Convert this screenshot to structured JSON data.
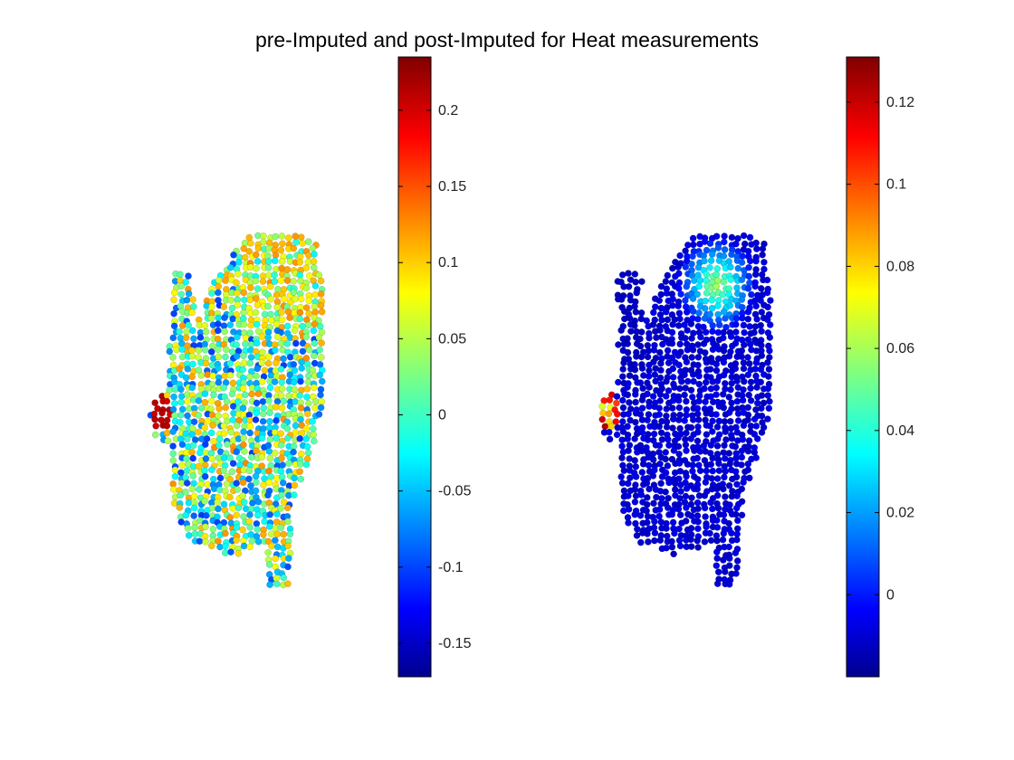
{
  "figure": {
    "title": "pre-Imputed and post-Imputed for Heat measurements"
  },
  "chart_data": [
    {
      "type": "scatter",
      "name_shown": "",
      "panel": "left",
      "colormap": "jet",
      "colorbar": {
        "range": [
          -0.172,
          0.235
        ],
        "ticks": [
          -0.15,
          -0.1,
          -0.05,
          0,
          0.05,
          0.1,
          0.15,
          0.2
        ],
        "tick_labels": [
          "-0.15",
          "-0.1",
          "-0.05",
          "0",
          "0.05",
          "0.1",
          "0.15",
          "0.2"
        ]
      },
      "value_pattern": "noisy",
      "value_range_body": [
        -0.1,
        0.13
      ],
      "hot_spot_value": 0.22
    },
    {
      "type": "scatter",
      "name_shown": "",
      "panel": "right",
      "colormap": "jet",
      "colorbar": {
        "range": [
          -0.02,
          0.131
        ],
        "ticks": [
          0,
          0.02,
          0.04,
          0.06,
          0.08,
          0.1,
          0.12
        ],
        "tick_labels": [
          "0",
          "0.02",
          "0.04",
          "0.06",
          "0.08",
          "0.1",
          "0.12"
        ]
      },
      "value_pattern": "smooth",
      "value_range_body": [
        -0.01,
        0.065
      ],
      "hot_spot_value": 0.125
    }
  ]
}
